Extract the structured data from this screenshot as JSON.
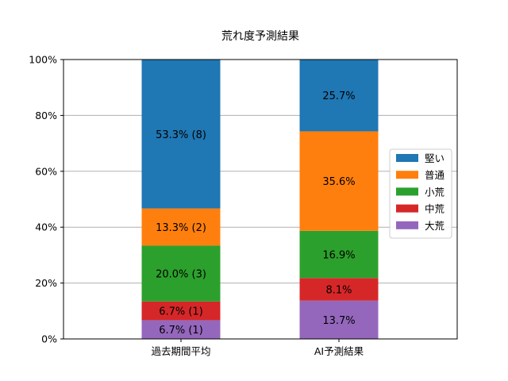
{
  "chart_data": {
    "type": "bar",
    "stacked": true,
    "title": "荒れ度予測結果",
    "xlabel": "",
    "ylabel": "",
    "ylim": [
      0,
      100
    ],
    "y_ticks": [
      "0%",
      "20%",
      "40%",
      "60%",
      "80%",
      "100%"
    ],
    "grid": "horizontal",
    "legend_position": "right",
    "categories": [
      "過去期間平均",
      "AI予測結果"
    ],
    "series": [
      {
        "name": "大荒",
        "color": "#9467bd",
        "values": [
          6.7,
          13.7
        ],
        "labels": [
          "6.7% (1)",
          "13.7%"
        ]
      },
      {
        "name": "中荒",
        "color": "#d62728",
        "values": [
          6.7,
          8.1
        ],
        "labels": [
          "6.7% (1)",
          "8.1%"
        ]
      },
      {
        "name": "小荒",
        "color": "#2ca02c",
        "values": [
          20.0,
          16.9
        ],
        "labels": [
          "20.0% (3)",
          "16.9%"
        ]
      },
      {
        "name": "普通",
        "color": "#ff7f0e",
        "values": [
          13.3,
          35.6
        ],
        "labels": [
          "13.3% (2)",
          "35.6%"
        ]
      },
      {
        "name": "堅い",
        "color": "#1f77b4",
        "values": [
          53.3,
          25.7
        ],
        "labels": [
          "53.3% (8)",
          "25.7%"
        ]
      }
    ],
    "legend_order": [
      "堅い",
      "普通",
      "小荒",
      "中荒",
      "大荒"
    ]
  }
}
